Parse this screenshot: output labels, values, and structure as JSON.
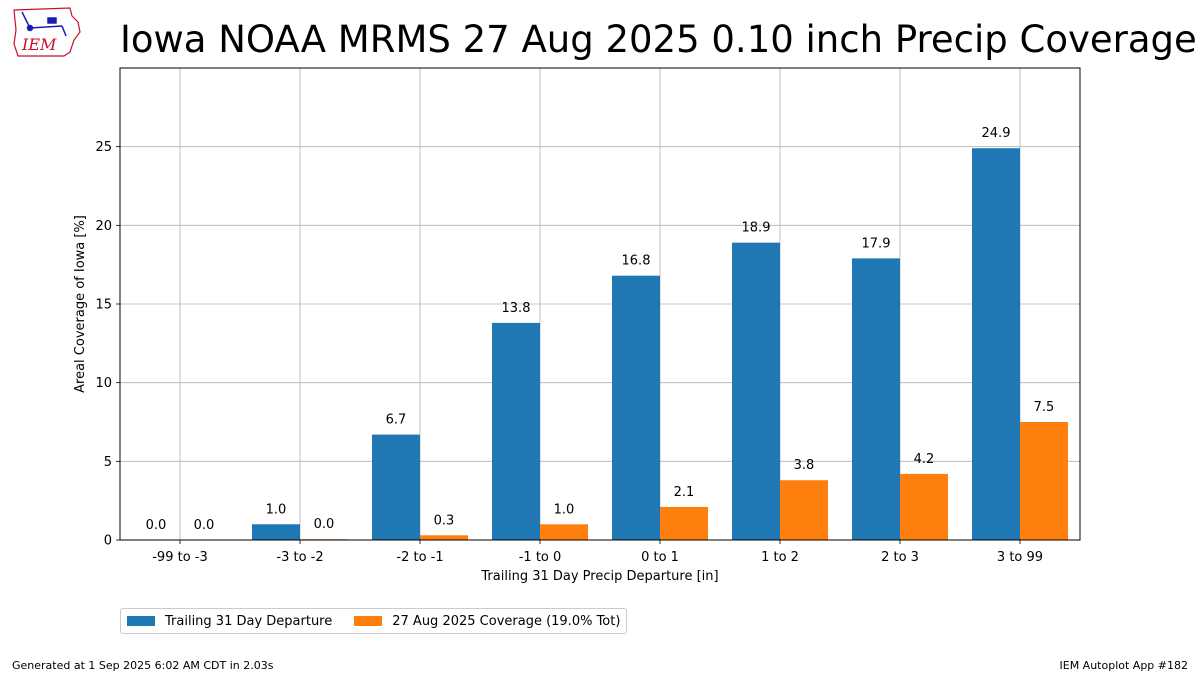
{
  "title": "Iowa NOAA MRMS 27 Aug 2025 0.10 inch Precip Coverage",
  "logo": {
    "text": "IEM"
  },
  "footer": {
    "generated": "Generated at 1 Sep 2025 6:02 AM CDT in 2.03s",
    "app": "IEM Autoplot App #182"
  },
  "colors": {
    "series1": "#1f77b4",
    "series2": "#ff7f0e",
    "grid": "#b0b0b0",
    "logo": "#c8102e"
  },
  "chart_data": {
    "type": "bar",
    "title": "Iowa NOAA MRMS 27 Aug 2025 0.10 inch Precip Coverage",
    "xlabel": "Trailing 31 Day Precip Departure [in]",
    "ylabel": "Areal Coverage of Iowa [%]",
    "ylim": [
      0,
      30
    ],
    "yticks": [
      0,
      5,
      10,
      15,
      20,
      25
    ],
    "grid": true,
    "legend_position": "below",
    "categories": [
      "-99 to -3",
      "-3 to -2",
      "-2 to -1",
      "-1 to 0",
      "0 to 1",
      "1 to 2",
      "2 to 3",
      "3 to 99"
    ],
    "series": [
      {
        "name": "Trailing 31 Day Departure",
        "values": [
          0.0,
          1.0,
          6.7,
          13.8,
          16.8,
          18.9,
          17.9,
          24.9
        ],
        "labels": [
          "0.0",
          "1.0",
          "6.7",
          "13.8",
          "16.8",
          "18.9",
          "17.9",
          "24.9"
        ]
      },
      {
        "name": "27 Aug 2025 Coverage (19.0% Tot)",
        "values": [
          0.0,
          0.05,
          0.3,
          1.0,
          2.1,
          3.8,
          4.2,
          7.5
        ],
        "labels": [
          "0.0",
          "0.0",
          "0.3",
          "1.0",
          "2.1",
          "3.8",
          "4.2",
          "7.5"
        ]
      }
    ]
  }
}
